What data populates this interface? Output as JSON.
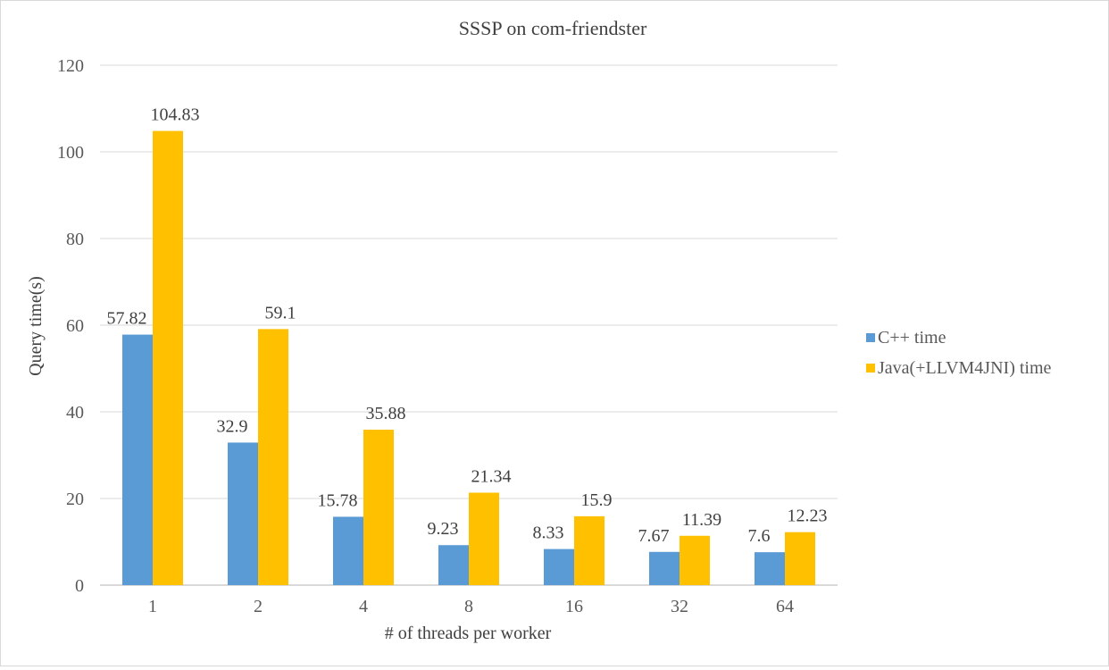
{
  "chart_data": {
    "type": "bar",
    "title": "SSSP on com-friendster",
    "xlabel": "# of  threads per worker",
    "ylabel": "Query time(s)",
    "categories": [
      "1",
      "2",
      "4",
      "8",
      "16",
      "32",
      "64"
    ],
    "series": [
      {
        "name": "C++ time",
        "color": "#5B9BD5",
        "values": [
          57.82,
          32.9,
          15.78,
          9.23,
          8.33,
          7.67,
          7.6
        ]
      },
      {
        "name": "Java(+LLVM4JNI) time",
        "color": "#FFC000",
        "values": [
          104.83,
          59.1,
          35.88,
          21.34,
          15.9,
          11.39,
          12.23
        ]
      }
    ],
    "ylim": [
      0,
      120
    ],
    "yticks": [
      0,
      20,
      40,
      60,
      80,
      100,
      120
    ],
    "grid": true,
    "legend": "right",
    "data_labels": true
  }
}
